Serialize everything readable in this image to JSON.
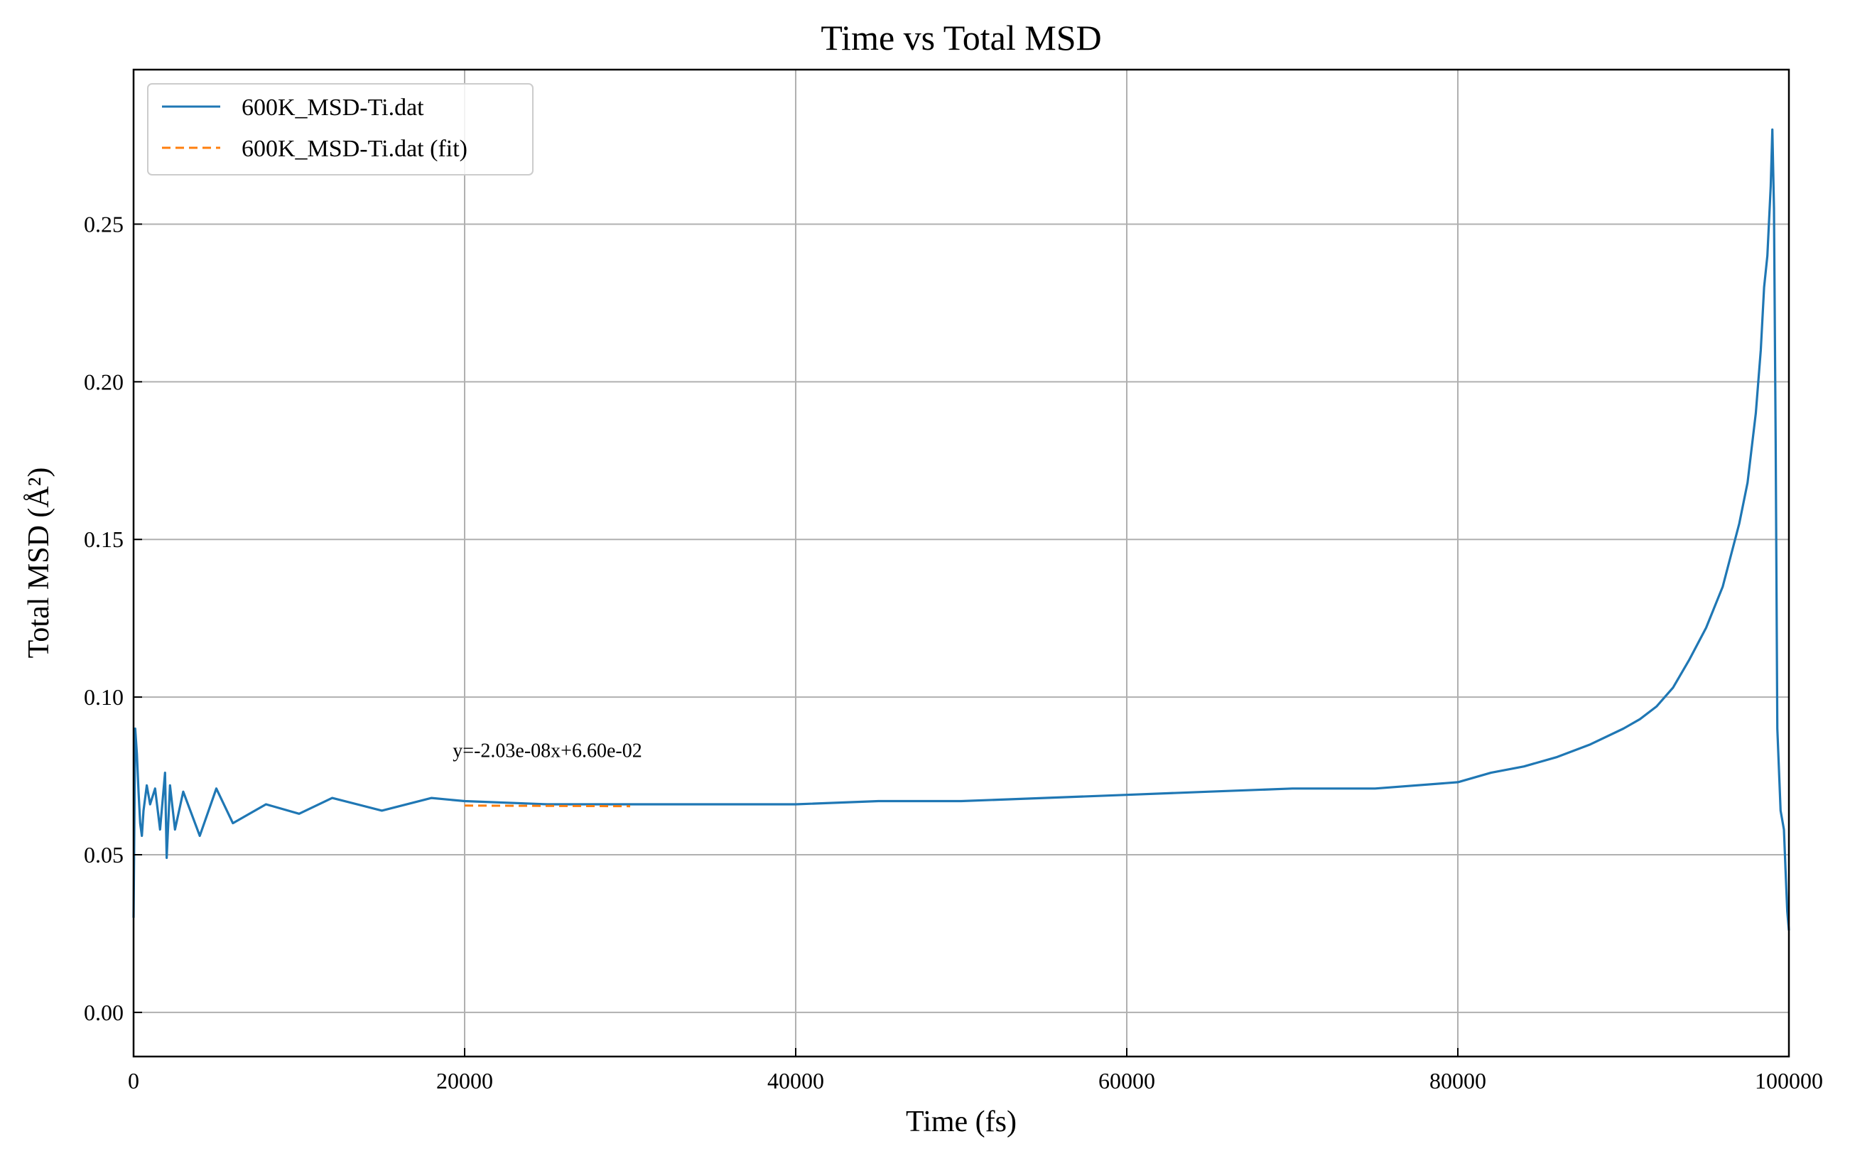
{
  "chart_data": {
    "type": "line",
    "title": "Time vs Total MSD",
    "xlabel": "Time (fs)",
    "ylabel": "Total MSD (Å²)",
    "xlim": [
      0,
      100000
    ],
    "ylim": [
      -0.014,
      0.299
    ],
    "x_ticks": [
      0,
      20000,
      40000,
      60000,
      80000,
      100000
    ],
    "y_ticks": [
      0.0,
      0.05,
      0.1,
      0.15,
      0.2,
      0.25
    ],
    "y_tick_labels": [
      "0.00",
      "0.05",
      "0.10",
      "0.15",
      "0.20",
      "0.25"
    ],
    "grid": true,
    "legend_position": "top-left",
    "colors": {
      "msd": "#1f77b4",
      "fit": "#ff7f0e"
    },
    "series": [
      {
        "name": "600K_MSD-Ti.dat",
        "style": "solid",
        "x": [
          0,
          100,
          200,
          300,
          400,
          500,
          600,
          800,
          1000,
          1300,
          1600,
          1900,
          2000,
          2200,
          2500,
          3000,
          4000,
          5000,
          6000,
          8000,
          10000,
          12000,
          15000,
          18000,
          20000,
          25000,
          30000,
          35000,
          40000,
          45000,
          50000,
          55000,
          60000,
          65000,
          70000,
          75000,
          80000,
          82000,
          84000,
          86000,
          88000,
          90000,
          91000,
          92000,
          93000,
          94000,
          95000,
          96000,
          97000,
          97500,
          98000,
          98300,
          98500,
          98700,
          98900,
          99000,
          99100,
          99200,
          99300,
          99500,
          99700,
          99800,
          99900,
          100000
        ],
        "y": [
          0.03,
          0.09,
          0.082,
          0.07,
          0.06,
          0.056,
          0.064,
          0.072,
          0.066,
          0.071,
          0.058,
          0.076,
          0.049,
          0.072,
          0.058,
          0.07,
          0.056,
          0.071,
          0.06,
          0.066,
          0.063,
          0.068,
          0.064,
          0.068,
          0.067,
          0.066,
          0.066,
          0.066,
          0.066,
          0.067,
          0.067,
          0.068,
          0.069,
          0.07,
          0.071,
          0.071,
          0.073,
          0.076,
          0.078,
          0.081,
          0.085,
          0.09,
          0.093,
          0.097,
          0.103,
          0.112,
          0.122,
          0.135,
          0.155,
          0.168,
          0.19,
          0.21,
          0.23,
          0.24,
          0.262,
          0.28,
          0.255,
          0.18,
          0.09,
          0.064,
          0.058,
          0.045,
          0.032,
          0.026
        ]
      },
      {
        "name": "600K_MSD-Ti.dat (fit)",
        "style": "dashed",
        "x": [
          20000,
          30000
        ],
        "y": [
          0.06559,
          0.06539
        ]
      }
    ],
    "annotations": [
      {
        "text": "y=-2.03e-08x+6.60e-02",
        "x": 25000,
        "y": 0.0832
      }
    ]
  }
}
